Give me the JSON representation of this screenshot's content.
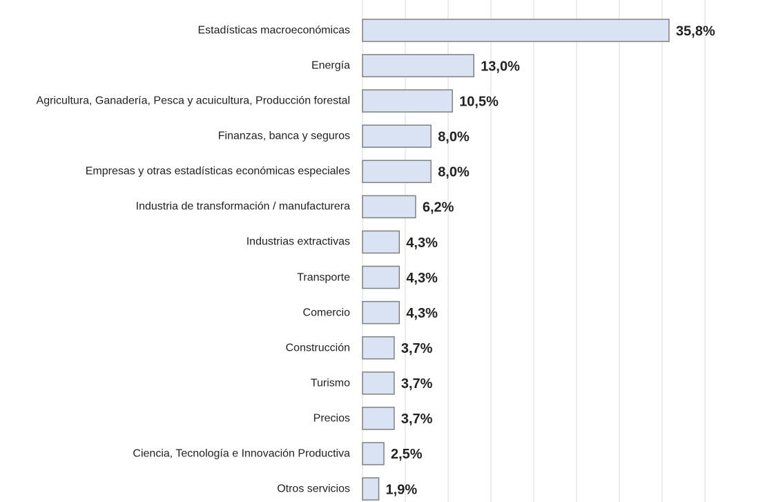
{
  "chart_data": {
    "type": "barh",
    "categories": [
      "Estadísticas macroeconómicas",
      "Energía",
      "Agricultura, Ganadería, Pesca y acuicultura, Producción forestal",
      "Finanzas, banca y seguros",
      "Empresas y otras estadísticas económicas especiales",
      "Industria de transformación / manufacturera",
      "Industrias extractivas",
      "Transporte",
      "Comercio",
      "Construcción",
      "Turismo",
      "Precios",
      "Ciencia, Tecnología e Innovación Productiva",
      "Otros servicios"
    ],
    "values": [
      35.8,
      13.0,
      10.5,
      8.0,
      8.0,
      6.2,
      4.3,
      4.3,
      4.3,
      3.7,
      3.7,
      3.7,
      2.5,
      1.9
    ],
    "value_labels": [
      "35,8%",
      "13,0%",
      "10,5%",
      "8,0%",
      "8,0%",
      "6,2%",
      "4,3%",
      "4,3%",
      "4,3%",
      "3,7%",
      "3,7%",
      "3,7%",
      "2,5%",
      "1,9%"
    ],
    "color": "#dae3f3",
    "xlim": [
      0,
      40
    ],
    "xticks": [
      0,
      5,
      10,
      15,
      20,
      25,
      30,
      35,
      40
    ],
    "grid": true
  }
}
